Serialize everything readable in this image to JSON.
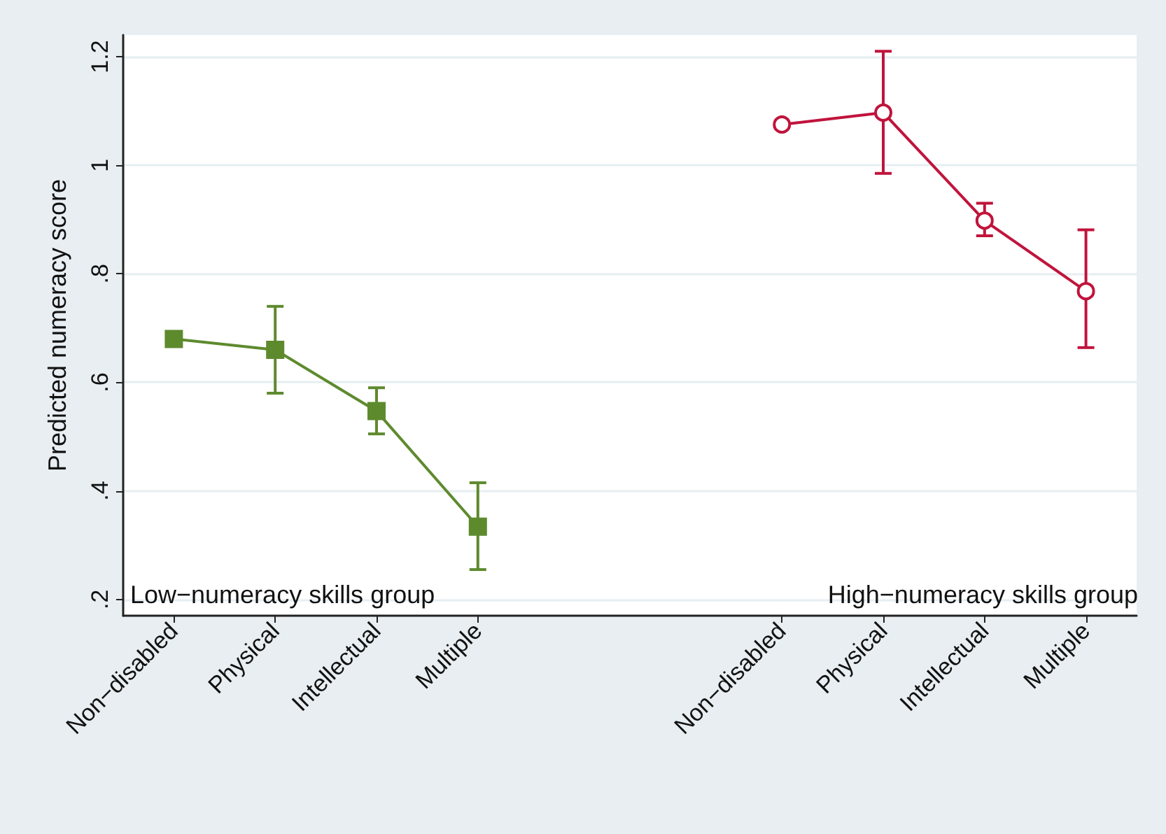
{
  "chart_data": {
    "type": "line",
    "ylabel": "Predicted numeracy score",
    "categories": [
      "Non−disabled",
      "Physical",
      "Intellectual",
      "Multiple",
      null,
      null,
      "Non−disabled",
      "Physical",
      "Intellectual",
      "Multiple"
    ],
    "series": [
      {
        "color": "#5e8a2e",
        "marker": "square",
        "values": [
          0.68,
          0.66,
          0.547,
          0.334,
          null,
          null,
          null,
          null,
          null,
          null
        ],
        "errors": [
          null,
          [
            0.58,
            0.74
          ],
          [
            0.505,
            0.59
          ],
          [
            0.255,
            0.415
          ],
          null,
          null,
          null,
          null,
          null,
          null
        ]
      },
      {
        "color": "#c0143c",
        "marker": "circle",
        "values": [
          null,
          null,
          null,
          null,
          null,
          null,
          1.075,
          1.097,
          0.898,
          0.768
        ],
        "errors": [
          null,
          null,
          null,
          null,
          null,
          null,
          null,
          [
            0.985,
            1.21
          ],
          [
            0.87,
            0.93
          ],
          [
            0.664,
            0.881
          ]
        ]
      }
    ],
    "ylim": [
      0.17,
      1.24
    ],
    "yticks": [
      {
        "value": 0.2,
        "label": ".2"
      },
      {
        "value": 0.4,
        "label": ".4"
      },
      {
        "value": 0.6,
        "label": ".6"
      },
      {
        "value": 0.8,
        "label": ".8"
      },
      1,
      1.2
    ],
    "grid": "y",
    "annotations": [
      "Low−numeracy skills group",
      "High−numeracy skills group"
    ]
  }
}
